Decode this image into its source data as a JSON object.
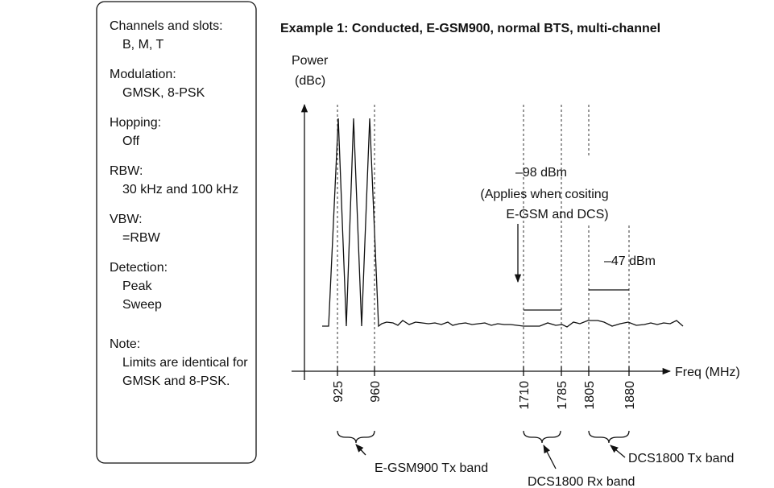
{
  "sidebar": [
    {
      "heading": "Channels and slots:",
      "lines": [
        "B, M, T"
      ]
    },
    {
      "heading": "Modulation:",
      "lines": [
        "GMSK, 8-PSK"
      ]
    },
    {
      "heading": "Hopping:",
      "lines": [
        "Off"
      ]
    },
    {
      "heading": "RBW:",
      "lines": [
        "30 kHz and 100 kHz"
      ]
    },
    {
      "heading": "VBW:",
      "lines": [
        "=RBW"
      ]
    },
    {
      "heading": "Detection:",
      "lines": [
        "Peak",
        "Sweep"
      ]
    },
    {
      "heading": "Note:",
      "lines": [
        "Limits are identical for",
        "GMSK and 8-PSK."
      ]
    }
  ],
  "diagram": {
    "title": "Example 1: Conducted, E-GSM900, normal BTS, multi-channel",
    "y_axis": [
      "Power",
      "(dBc)"
    ],
    "x_axis": "Freq (MHz)",
    "freq_labels": [
      "925",
      "960",
      "1710",
      "1785",
      "1805",
      "1880"
    ],
    "annotation_98": [
      "–98 dBm",
      "(Applies when cositing",
      "E-GSM and DCS)"
    ],
    "annotation_47": "–47 dBm",
    "bands": [
      "E-GSM900 Tx band",
      "DCS1800 Rx band",
      "DCS1800 Tx band"
    ]
  }
}
